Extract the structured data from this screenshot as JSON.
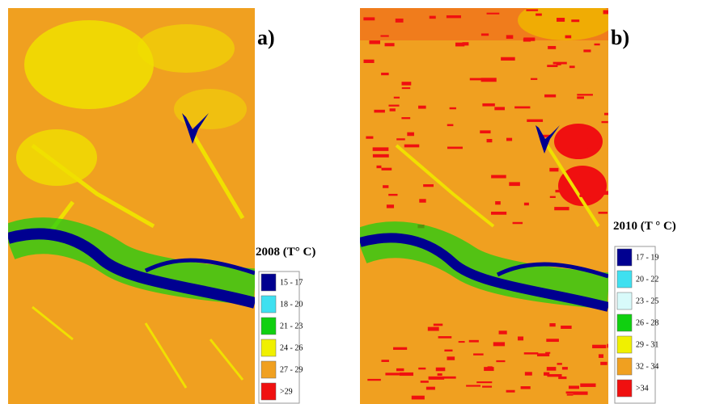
{
  "panels": [
    {
      "label": "a)",
      "legend_title": "2008 (T° C)",
      "legend": [
        {
          "label": "15 - 17",
          "color": "#000090"
        },
        {
          "label": "18 - 20",
          "color": "#3fe0f0"
        },
        {
          "label": "21 - 23",
          "color": "#10d010"
        },
        {
          "label": "24 - 26",
          "color": "#f0f000"
        },
        {
          "label": "27 - 29",
          "color": "#f0a020"
        },
        {
          "label": ">29",
          "color": "#f01010"
        }
      ]
    },
    {
      "label": "b)",
      "legend_title": "2010 (T ° C)",
      "legend": [
        {
          "label": "17 - 19",
          "color": "#000090"
        },
        {
          "label": "20 - 22",
          "color": "#3fe0f0"
        },
        {
          "label": "23 - 25",
          "color": "#d8fafa"
        },
        {
          "label": "26 - 28",
          "color": "#10d010"
        },
        {
          "label": "29 - 31",
          "color": "#f0f000"
        },
        {
          "label": "32 - 34",
          "color": "#f0a020"
        },
        {
          "label": ">34",
          "color": "#f01010"
        }
      ]
    }
  ]
}
